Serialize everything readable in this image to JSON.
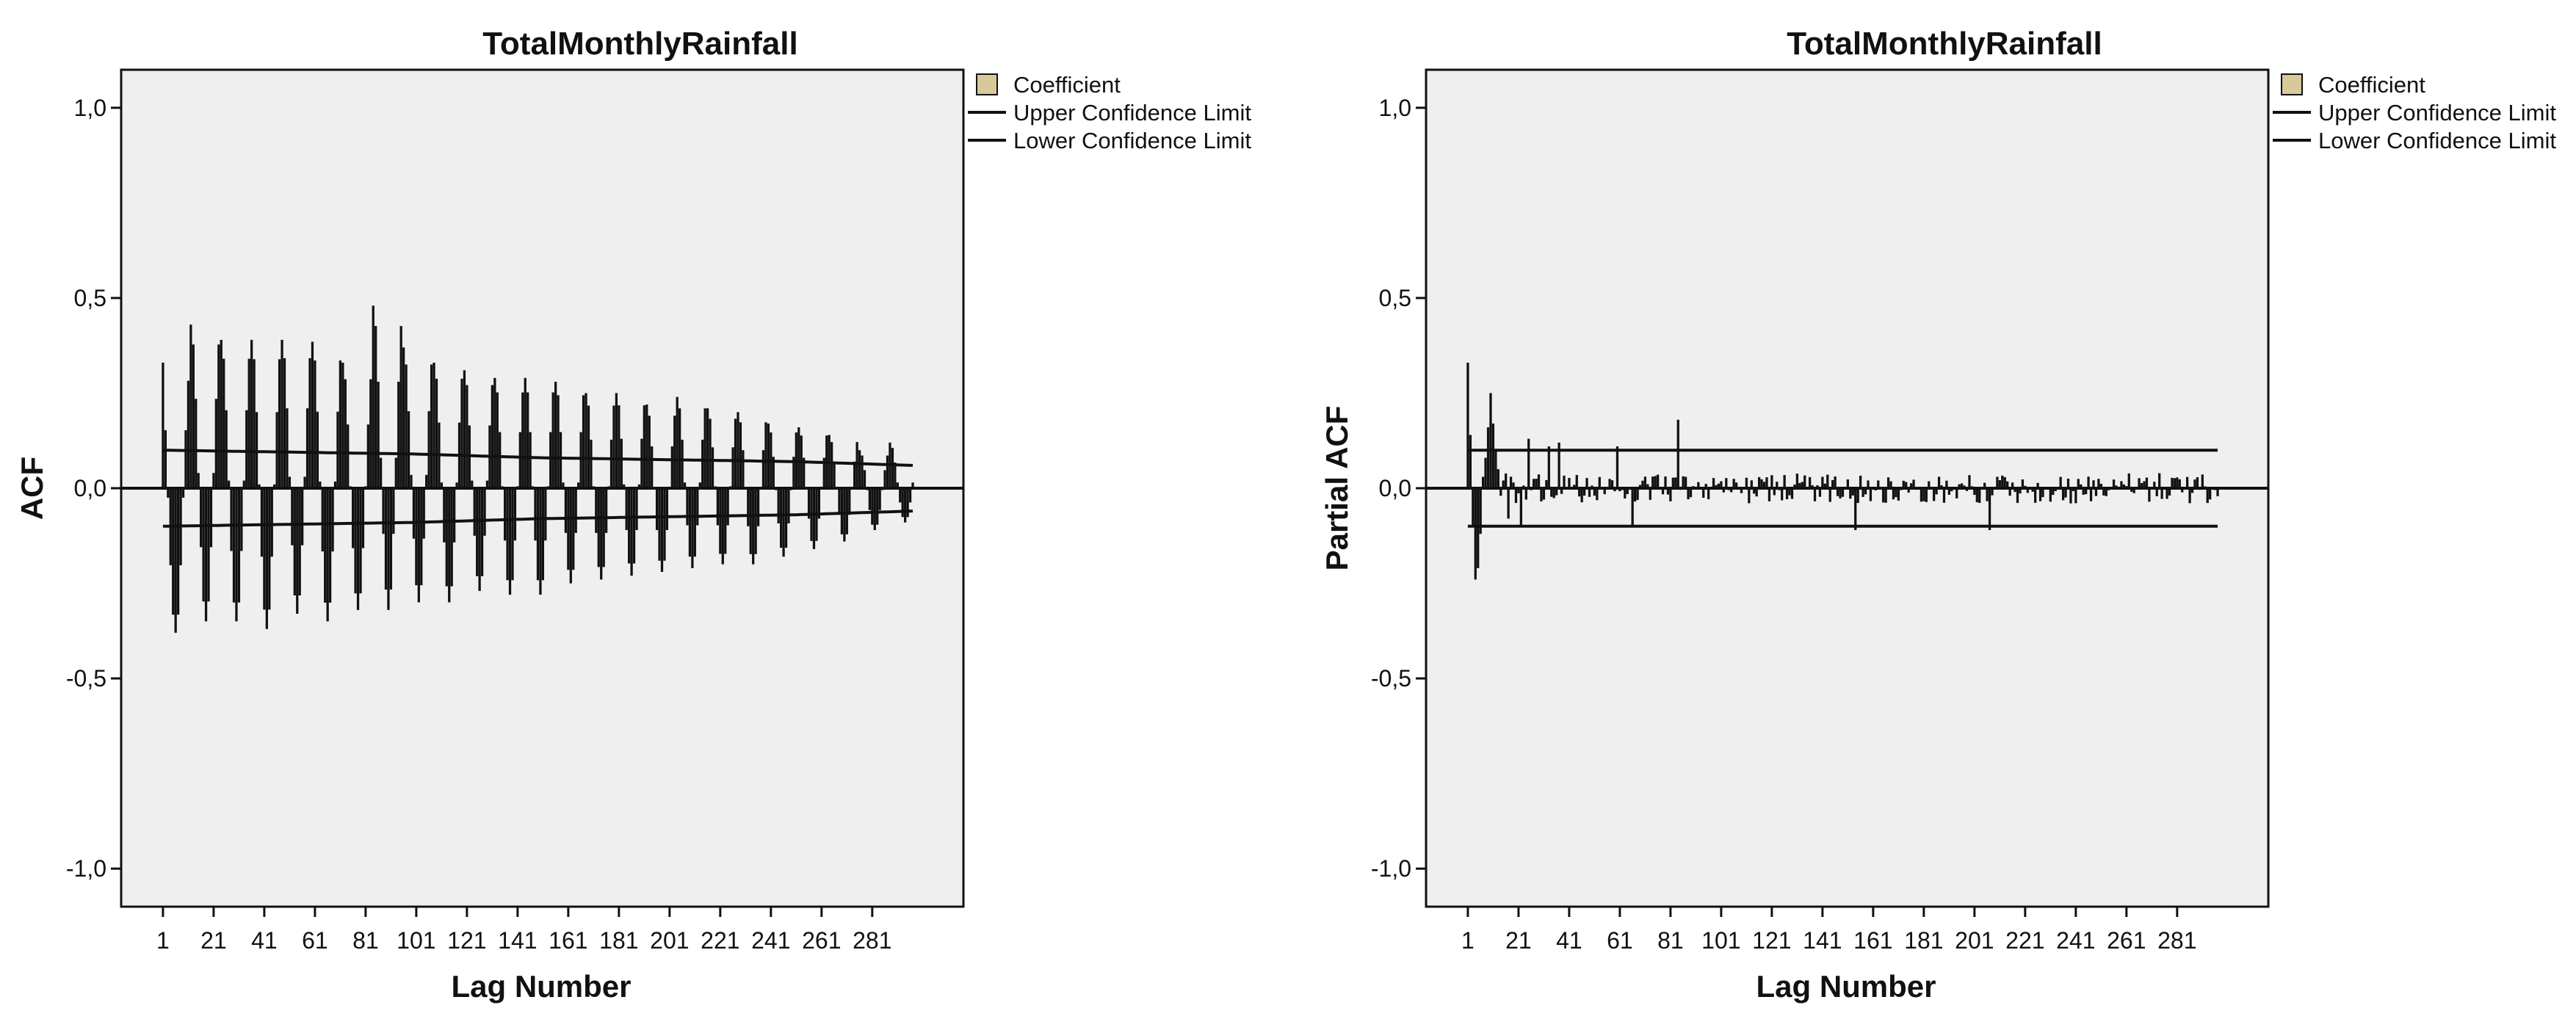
{
  "colors": {
    "plot_background": "#efefef",
    "bar": "#111111",
    "limit_line": "#111111",
    "legend_swatch": "#d8c99a"
  },
  "chart_data": [
    {
      "type": "bar",
      "title": "TotalMonthlyRainfall",
      "xlabel": "Lag Number",
      "ylabel": "ACF",
      "ylim": [
        -1.1,
        1.1
      ],
      "xlim": [
        -15.5,
        317
      ],
      "yticks": [
        1.0,
        0.5,
        0.0,
        -0.5,
        -1.0
      ],
      "ytick_labels": [
        "1,0",
        "0,5",
        "0,0",
        "-0,5",
        "-1,0"
      ],
      "xtick_labels": [
        "1",
        "21",
        "41",
        "61",
        "81",
        "101",
        "121",
        "141",
        "161",
        "181",
        "201",
        "221",
        "241",
        "261",
        "281"
      ],
      "legend": [
        "Coefficient",
        "Upper Confidence Limit",
        "Lower Confidence Limit"
      ],
      "legend_position": "outside top-right",
      "lags": {
        "start": 1,
        "end": 297
      },
      "description": "seasonal ACF with period 12: peaks at lags 12k, troughs at 12k+6, damping with lag",
      "seasonal_peaks": [
        {
          "lag": 1,
          "value": 0.33
        },
        {
          "lag": 12,
          "value": 0.43
        },
        {
          "lag": 24,
          "value": 0.39
        },
        {
          "lag": 36,
          "value": 0.39
        },
        {
          "lag": 48,
          "value": 0.39
        },
        {
          "lag": 60,
          "value": 0.385
        },
        {
          "lag": 72,
          "value": 0.33
        },
        {
          "lag": 84,
          "value": 0.48
        },
        {
          "lag": 96,
          "value": 0.37
        },
        {
          "lag": 108,
          "value": 0.33
        },
        {
          "lag": 120,
          "value": 0.31
        },
        {
          "lag": 132,
          "value": 0.29
        },
        {
          "lag": 144,
          "value": 0.29
        },
        {
          "lag": 156,
          "value": 0.28
        },
        {
          "lag": 168,
          "value": 0.25
        },
        {
          "lag": 180,
          "value": 0.25
        },
        {
          "lag": 192,
          "value": 0.22
        },
        {
          "lag": 204,
          "value": 0.24
        },
        {
          "lag": 216,
          "value": 0.21
        },
        {
          "lag": 228,
          "value": 0.2
        },
        {
          "lag": 240,
          "value": 0.17
        },
        {
          "lag": 252,
          "value": 0.16
        },
        {
          "lag": 264,
          "value": 0.14
        },
        {
          "lag": 276,
          "value": 0.1
        },
        {
          "lag": 288,
          "value": 0.12
        }
      ],
      "seasonal_troughs": [
        {
          "lag": 6,
          "value": -0.38
        },
        {
          "lag": 18,
          "value": -0.35
        },
        {
          "lag": 30,
          "value": -0.35
        },
        {
          "lag": 42,
          "value": -0.37
        },
        {
          "lag": 54,
          "value": -0.33
        },
        {
          "lag": 66,
          "value": -0.35
        },
        {
          "lag": 78,
          "value": -0.32
        },
        {
          "lag": 90,
          "value": -0.32
        },
        {
          "lag": 102,
          "value": -0.3
        },
        {
          "lag": 114,
          "value": -0.3
        },
        {
          "lag": 126,
          "value": -0.27
        },
        {
          "lag": 138,
          "value": -0.28
        },
        {
          "lag": 150,
          "value": -0.28
        },
        {
          "lag": 162,
          "value": -0.25
        },
        {
          "lag": 174,
          "value": -0.24
        },
        {
          "lag": 186,
          "value": -0.23
        },
        {
          "lag": 198,
          "value": -0.22
        },
        {
          "lag": 210,
          "value": -0.21
        },
        {
          "lag": 222,
          "value": -0.2
        },
        {
          "lag": 234,
          "value": -0.2
        },
        {
          "lag": 246,
          "value": -0.18
        },
        {
          "lag": 258,
          "value": -0.16
        },
        {
          "lag": 270,
          "value": -0.14
        },
        {
          "lag": 282,
          "value": -0.11
        },
        {
          "lag": 294,
          "value": -0.09
        }
      ],
      "upper_confidence_limit": [
        [
          1,
          0.1
        ],
        [
          50,
          0.095
        ],
        [
          100,
          0.09
        ],
        [
          150,
          0.08
        ],
        [
          200,
          0.075
        ],
        [
          250,
          0.07
        ],
        [
          297,
          0.06
        ]
      ],
      "lower_confidence_limit": [
        [
          1,
          -0.1
        ],
        [
          50,
          -0.095
        ],
        [
          100,
          -0.09
        ],
        [
          150,
          -0.08
        ],
        [
          200,
          -0.075
        ],
        [
          250,
          -0.07
        ],
        [
          297,
          -0.06
        ]
      ]
    },
    {
      "type": "bar",
      "title": "TotalMonthlyRainfall",
      "xlabel": "Lag Number",
      "ylabel": "Partial ACF",
      "ylim": [
        -1.1,
        1.1
      ],
      "xlim": [
        -15.5,
        317
      ],
      "yticks": [
        1.0,
        0.5,
        0.0,
        -0.5,
        -1.0
      ],
      "ytick_labels": [
        "1,0",
        "0,5",
        "0,0",
        "-0,5",
        "-1,0"
      ],
      "xtick_labels": [
        "1",
        "21",
        "41",
        "61",
        "81",
        "101",
        "121",
        "141",
        "161",
        "181",
        "201",
        "221",
        "241",
        "261",
        "281"
      ],
      "legend": [
        "Coefficient",
        "Upper Confidence Limit",
        "Lower Confidence Limit"
      ],
      "legend_position": "outside top-right",
      "lags": {
        "start": 1,
        "end": 297
      },
      "description": "partial ACF: large spikes at short lags, then small values mostly within confidence limits",
      "notable_values": [
        {
          "lag": 1,
          "value": 0.33
        },
        {
          "lag": 2,
          "value": 0.14
        },
        {
          "lag": 3,
          "value": -0.1
        },
        {
          "lag": 4,
          "value": -0.24
        },
        {
          "lag": 5,
          "value": -0.21
        },
        {
          "lag": 6,
          "value": -0.12
        },
        {
          "lag": 7,
          "value": 0.03
        },
        {
          "lag": 8,
          "value": 0.08
        },
        {
          "lag": 9,
          "value": 0.16
        },
        {
          "lag": 10,
          "value": 0.25
        },
        {
          "lag": 11,
          "value": 0.17
        },
        {
          "lag": 12,
          "value": 0.1
        },
        {
          "lag": 13,
          "value": 0.05
        },
        {
          "lag": 17,
          "value": -0.08
        },
        {
          "lag": 22,
          "value": -0.1
        },
        {
          "lag": 25,
          "value": 0.13
        },
        {
          "lag": 33,
          "value": 0.11
        },
        {
          "lag": 37,
          "value": 0.12
        },
        {
          "lag": 60,
          "value": 0.11
        },
        {
          "lag": 66,
          "value": -0.1
        },
        {
          "lag": 84,
          "value": 0.18
        },
        {
          "lag": 154,
          "value": -0.11
        },
        {
          "lag": 207,
          "value": -0.11
        }
      ],
      "background_amplitude": 0.04,
      "upper_confidence_limit": [
        [
          1,
          0.1
        ],
        [
          297,
          0.1
        ]
      ],
      "lower_confidence_limit": [
        [
          1,
          -0.1
        ],
        [
          297,
          -0.1
        ]
      ]
    }
  ]
}
